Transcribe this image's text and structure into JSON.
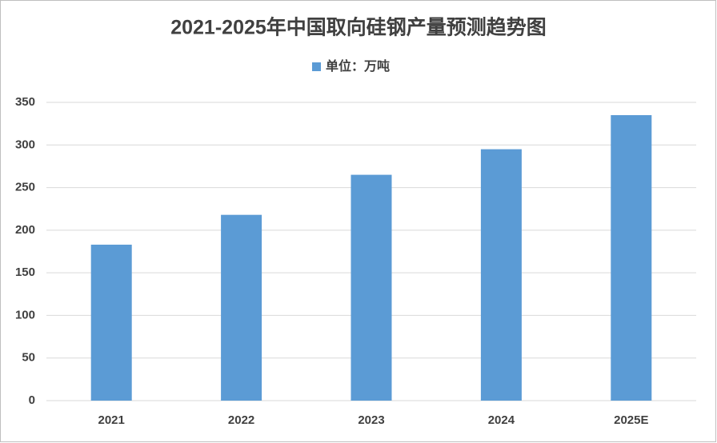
{
  "chart_data": {
    "type": "bar",
    "title": "2021-2025年中国取向硅钢产量预测趋势图",
    "categories": [
      "2021",
      "2022",
      "2023",
      "2024",
      "2025E"
    ],
    "series": [
      {
        "name": "单位：万吨",
        "color": "#5b9bd5",
        "values": [
          183,
          218,
          265,
          295,
          335
        ]
      }
    ],
    "ylim": [
      0,
      350
    ],
    "yticks": [
      0,
      50,
      100,
      150,
      200,
      250,
      300,
      350
    ],
    "grid": true,
    "legend": "top"
  }
}
